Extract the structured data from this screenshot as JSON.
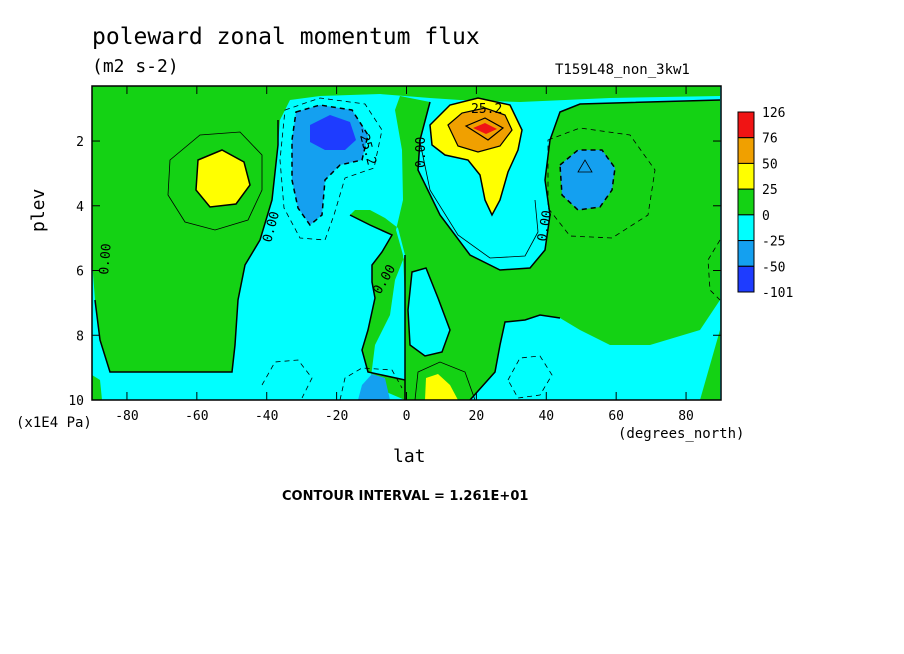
{
  "chart_data": {
    "type": "heatmap",
    "title": "poleward zonal momentum flux",
    "units": "(m2 s-2)",
    "dataset_label": "T159L48_non_3kw1",
    "xlabel": "lat",
    "x_units": "(degrees_north)",
    "ylabel": "plev",
    "y_multiplier": "(x1E4 Pa)",
    "xlim": [
      -90,
      90
    ],
    "ylim": [
      10,
      0.3
    ],
    "x_ticks": [
      -80,
      -60,
      -40,
      -20,
      0,
      20,
      40,
      60,
      80
    ],
    "y_ticks": [
      2,
      4,
      6,
      8,
      10
    ],
    "colorbar": {
      "labels": [
        "126",
        "76",
        "50",
        "25",
        "0",
        "-25",
        "-50",
        "-101"
      ],
      "colors": [
        "#f01414",
        "#f0a000",
        "#ffff00",
        "#14d214",
        "#00ffff",
        "#14a0f0",
        "#1e3cff"
      ]
    },
    "contour_labels": [
      "25.2",
      "0.00",
      "-25.2"
    ],
    "contour_interval_text": "CONTOUR INTERVAL = 1.261E+01",
    "features": [
      {
        "name": "northern positive maximum",
        "lat": 22,
        "plev": 1.5,
        "value": 126
      },
      {
        "name": "southern negative minimum",
        "lat": -22,
        "plev": 1.5,
        "value": -101
      },
      {
        "name": "southern midlatitude positive",
        "lat": -54,
        "plev": 2.9,
        "value": 40
      },
      {
        "name": "northern midlatitude negative",
        "lat": 52,
        "plev": 2.8,
        "value": -40
      }
    ]
  },
  "colors": {
    "red": "#f01414",
    "orange": "#f0a000",
    "yellow": "#ffff00",
    "green": "#14d214",
    "cyan": "#00ffff",
    "blue": "#14a0f0",
    "darkblue": "#1e3cff"
  }
}
